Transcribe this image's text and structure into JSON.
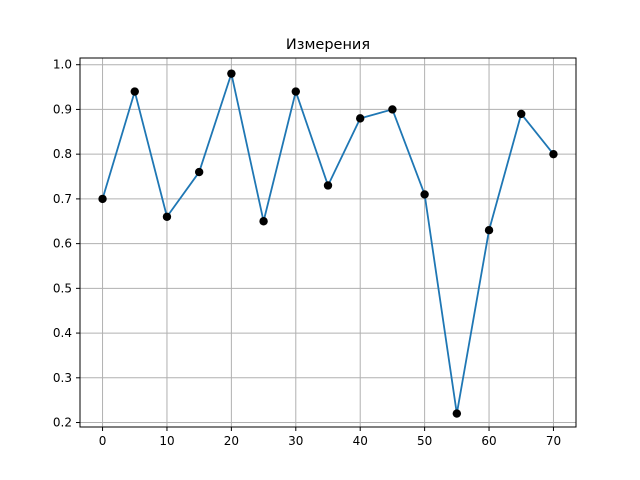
{
  "chart_data": {
    "type": "line",
    "title": "Измерения",
    "xlabel": "",
    "ylabel": "",
    "x": [
      0,
      5,
      10,
      15,
      20,
      25,
      30,
      35,
      40,
      45,
      50,
      55,
      60,
      65,
      70
    ],
    "series": [
      {
        "values": [
          0.7,
          0.94,
          0.66,
          0.76,
          0.98,
          0.65,
          0.94,
          0.73,
          0.88,
          0.9,
          0.71,
          0.22,
          0.63,
          0.89,
          0.8
        ],
        "line_color": "#1f77b4",
        "marker_color": "#000000"
      }
    ],
    "xlim": [
      -3.5,
      73.5
    ],
    "ylim": [
      0.19,
      1.015
    ],
    "x_ticks": [
      "0",
      "10",
      "20",
      "30",
      "40",
      "50",
      "60",
      "70"
    ],
    "y_ticks": [
      "0.2",
      "0.3",
      "0.4",
      "0.5",
      "0.6",
      "0.7",
      "0.8",
      "0.9",
      "1.0"
    ],
    "grid": true
  }
}
